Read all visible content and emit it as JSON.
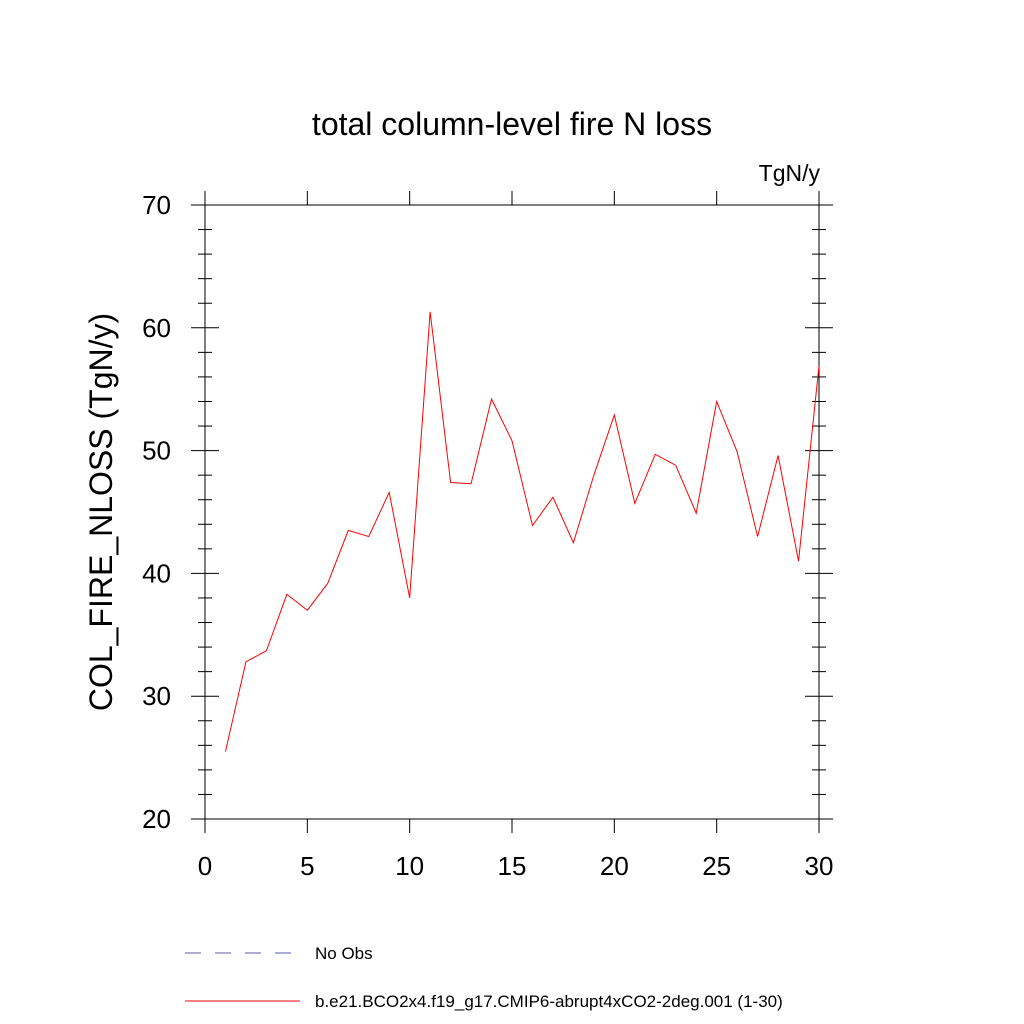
{
  "chart_data": {
    "type": "line",
    "title": "total column-level fire N loss",
    "units_label": "TgN/y",
    "ylabel": "COL_FIRE_NLOSS  (TgN/y)",
    "xlabel": "",
    "xlim": [
      0,
      30
    ],
    "ylim": [
      20,
      70
    ],
    "x_ticks": [
      0,
      5,
      10,
      15,
      20,
      25,
      30
    ],
    "y_ticks": [
      20,
      30,
      40,
      50,
      60,
      70
    ],
    "x_tick_labels": [
      "0",
      "5",
      "10",
      "15",
      "20",
      "25",
      "30"
    ],
    "y_tick_labels": [
      "20",
      "30",
      "40",
      "50",
      "60",
      "70"
    ],
    "grid": false,
    "legend_placement": "bottom",
    "series": [
      {
        "name": "No Obs",
        "style": "dashed",
        "color": "#5a5aa8",
        "x": [],
        "values": []
      },
      {
        "name": "b.e21.BCO2x4.f19_g17.CMIP6-abrupt4xCO2-2deg.001 (1-30)",
        "style": "solid",
        "color": "#ff0000",
        "x": [
          1,
          2,
          3,
          4,
          5,
          6,
          7,
          8,
          9,
          10,
          11,
          12,
          13,
          14,
          15,
          16,
          17,
          18,
          19,
          20,
          21,
          22,
          23,
          24,
          25,
          26,
          27,
          28,
          29,
          30
        ],
        "values": [
          25.5,
          32.8,
          33.7,
          38.3,
          37.0,
          39.2,
          43.5,
          43.0,
          46.6,
          38.0,
          61.3,
          47.4,
          47.3,
          54.2,
          50.8,
          43.9,
          46.2,
          42.5,
          48.0,
          52.9,
          45.7,
          49.7,
          48.8,
          44.9,
          54.0,
          49.9,
          43.0,
          49.6,
          41.0,
          56.9
        ]
      }
    ]
  }
}
